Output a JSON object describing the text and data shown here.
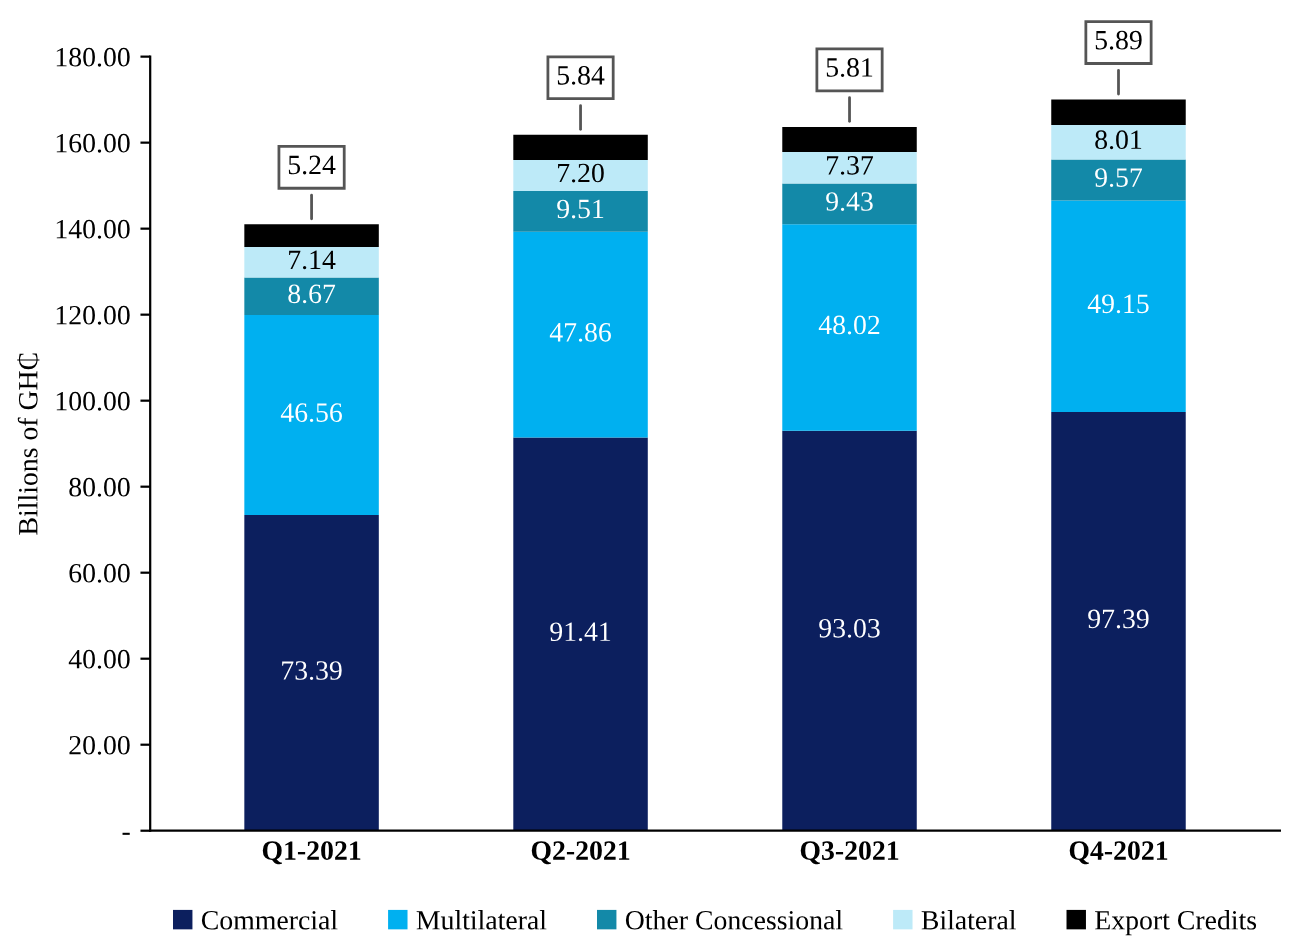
{
  "chart_data": {
    "type": "bar",
    "stacked": true,
    "ylabel": "Billions of GH₵",
    "categories": [
      "Q1-2021",
      "Q2-2021",
      "Q3-2021",
      "Q4-2021"
    ],
    "series": [
      {
        "name": "Commercial",
        "color": "#0c1f5e",
        "values": [
          73.39,
          91.41,
          93.03,
          97.39
        ],
        "value_labels": [
          "73.39",
          "91.41",
          "93.03",
          "97.39"
        ]
      },
      {
        "name": "Multilateral",
        "color": "#00b0f0",
        "values": [
          46.56,
          47.86,
          48.02,
          49.15
        ],
        "value_labels": [
          "46.56",
          "47.86",
          "48.02",
          "49.15"
        ]
      },
      {
        "name": "Other Concessional",
        "color": "#1389a8",
        "values": [
          8.67,
          9.51,
          9.43,
          9.57
        ],
        "value_labels": [
          "8.67",
          "9.51",
          "9.43",
          "9.57"
        ]
      },
      {
        "name": "Bilateral",
        "color": "#bdeaf8",
        "values": [
          7.14,
          7.2,
          7.37,
          8.01
        ],
        "value_labels": [
          "7.14",
          "7.20",
          "7.37",
          "8.01"
        ]
      },
      {
        "name": "Export Credits",
        "color": "#000000",
        "values": [
          5.24,
          5.84,
          5.81,
          5.89
        ],
        "value_labels": [
          "5.24",
          "5.84",
          "5.81",
          "5.89"
        ]
      }
    ],
    "ylim": [
      0,
      180
    ],
    "yticks": [
      {
        "value": 0,
        "label": "-"
      },
      {
        "value": 20,
        "label": "20.00"
      },
      {
        "value": 40,
        "label": "40.00"
      },
      {
        "value": 60,
        "label": "60.00"
      },
      {
        "value": 80,
        "label": "80.00"
      },
      {
        "value": 100,
        "label": "100.00"
      },
      {
        "value": 120,
        "label": "120.00"
      },
      {
        "value": 140,
        "label": "140.00"
      },
      {
        "value": 160,
        "label": "160.00"
      },
      {
        "value": 180,
        "label": "180.00"
      }
    ],
    "grid": false,
    "legend": "bottom"
  }
}
